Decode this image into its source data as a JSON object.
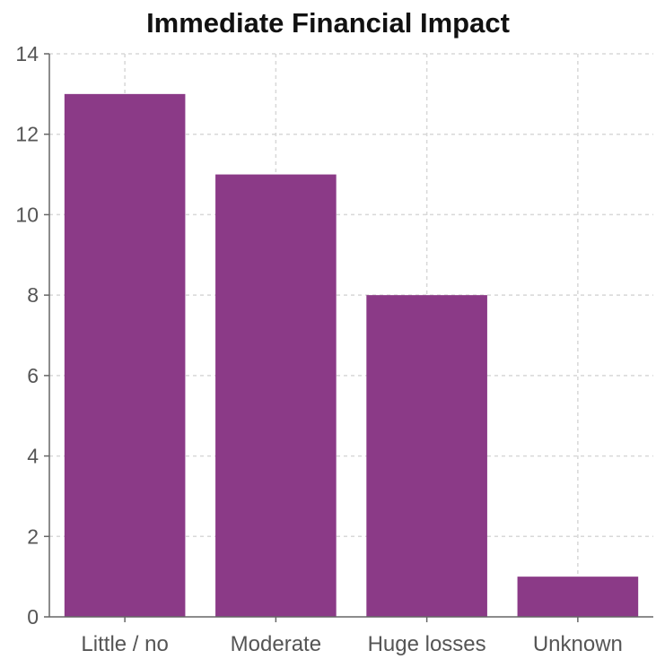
{
  "chart_data": {
    "type": "bar",
    "title": "Immediate Financial Impact",
    "xlabel": "",
    "ylabel": "",
    "categories": [
      "Little / no",
      "Moderate",
      "Huge losses",
      "Unknown"
    ],
    "values": [
      13,
      11,
      8,
      1
    ],
    "ylim": [
      0,
      14
    ],
    "yticks": [
      "0",
      "2",
      "4",
      "6",
      "8",
      "10",
      "12",
      "14"
    ],
    "grid": true,
    "legend": "none",
    "colors": {
      "bar": "#8b3a87",
      "grid": "#d8d8d8",
      "axis": "#666666"
    }
  }
}
